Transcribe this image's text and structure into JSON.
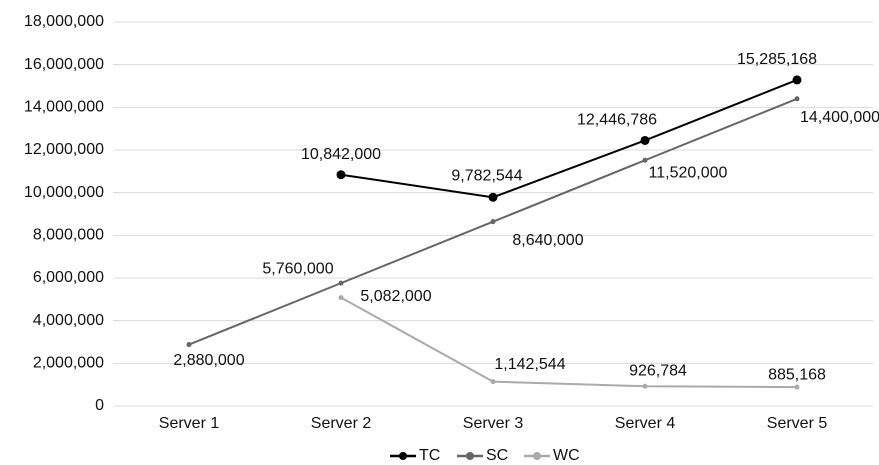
{
  "chart_data": {
    "type": "line",
    "categories": [
      "Server 1",
      "Server 2",
      "Server 3",
      "Server 4",
      "Server 5"
    ],
    "series": [
      {
        "name": "TC",
        "color": "#000000",
        "values": [
          null,
          10842000,
          9782544,
          12446786,
          15285168
        ],
        "value_labels": [
          null,
          "10,842,000",
          "9,782,544",
          "12,446,786",
          "15,285,168"
        ]
      },
      {
        "name": "SC",
        "color": "#666666",
        "values": [
          2880000,
          5760000,
          8640000,
          11520000,
          14400000
        ],
        "value_labels": [
          "2,880,000",
          "5,760,000",
          "8,640,000",
          "11,520,000",
          "14,400,000"
        ]
      },
      {
        "name": "WC",
        "color": "#aaaaaa",
        "values": [
          null,
          5082000,
          1142544,
          926784,
          885168
        ],
        "value_labels": [
          null,
          "5,082,000",
          "1,142,544",
          "926,784",
          "885,168"
        ]
      }
    ],
    "ylim": [
      0,
      18000000
    ],
    "yticks": [
      0,
      {
        "value": 2000000,
        "label": "2,000,000"
      },
      {
        "value": 4000000,
        "label": "4,000,000"
      },
      {
        "value": 6000000,
        "label": "6,000,000"
      },
      {
        "value": 8000000,
        "label": "8,000,000"
      },
      {
        "value": 10000000,
        "label": "10,000,000"
      },
      {
        "value": 12000000,
        "label": "12,000,000"
      },
      {
        "value": 14000000,
        "label": "14,000,000"
      },
      {
        "value": 16000000,
        "label": "16,000,000"
      },
      {
        "value": 18000000,
        "label": "18,000,000"
      }
    ],
    "grid": true,
    "legend": "bottom"
  }
}
